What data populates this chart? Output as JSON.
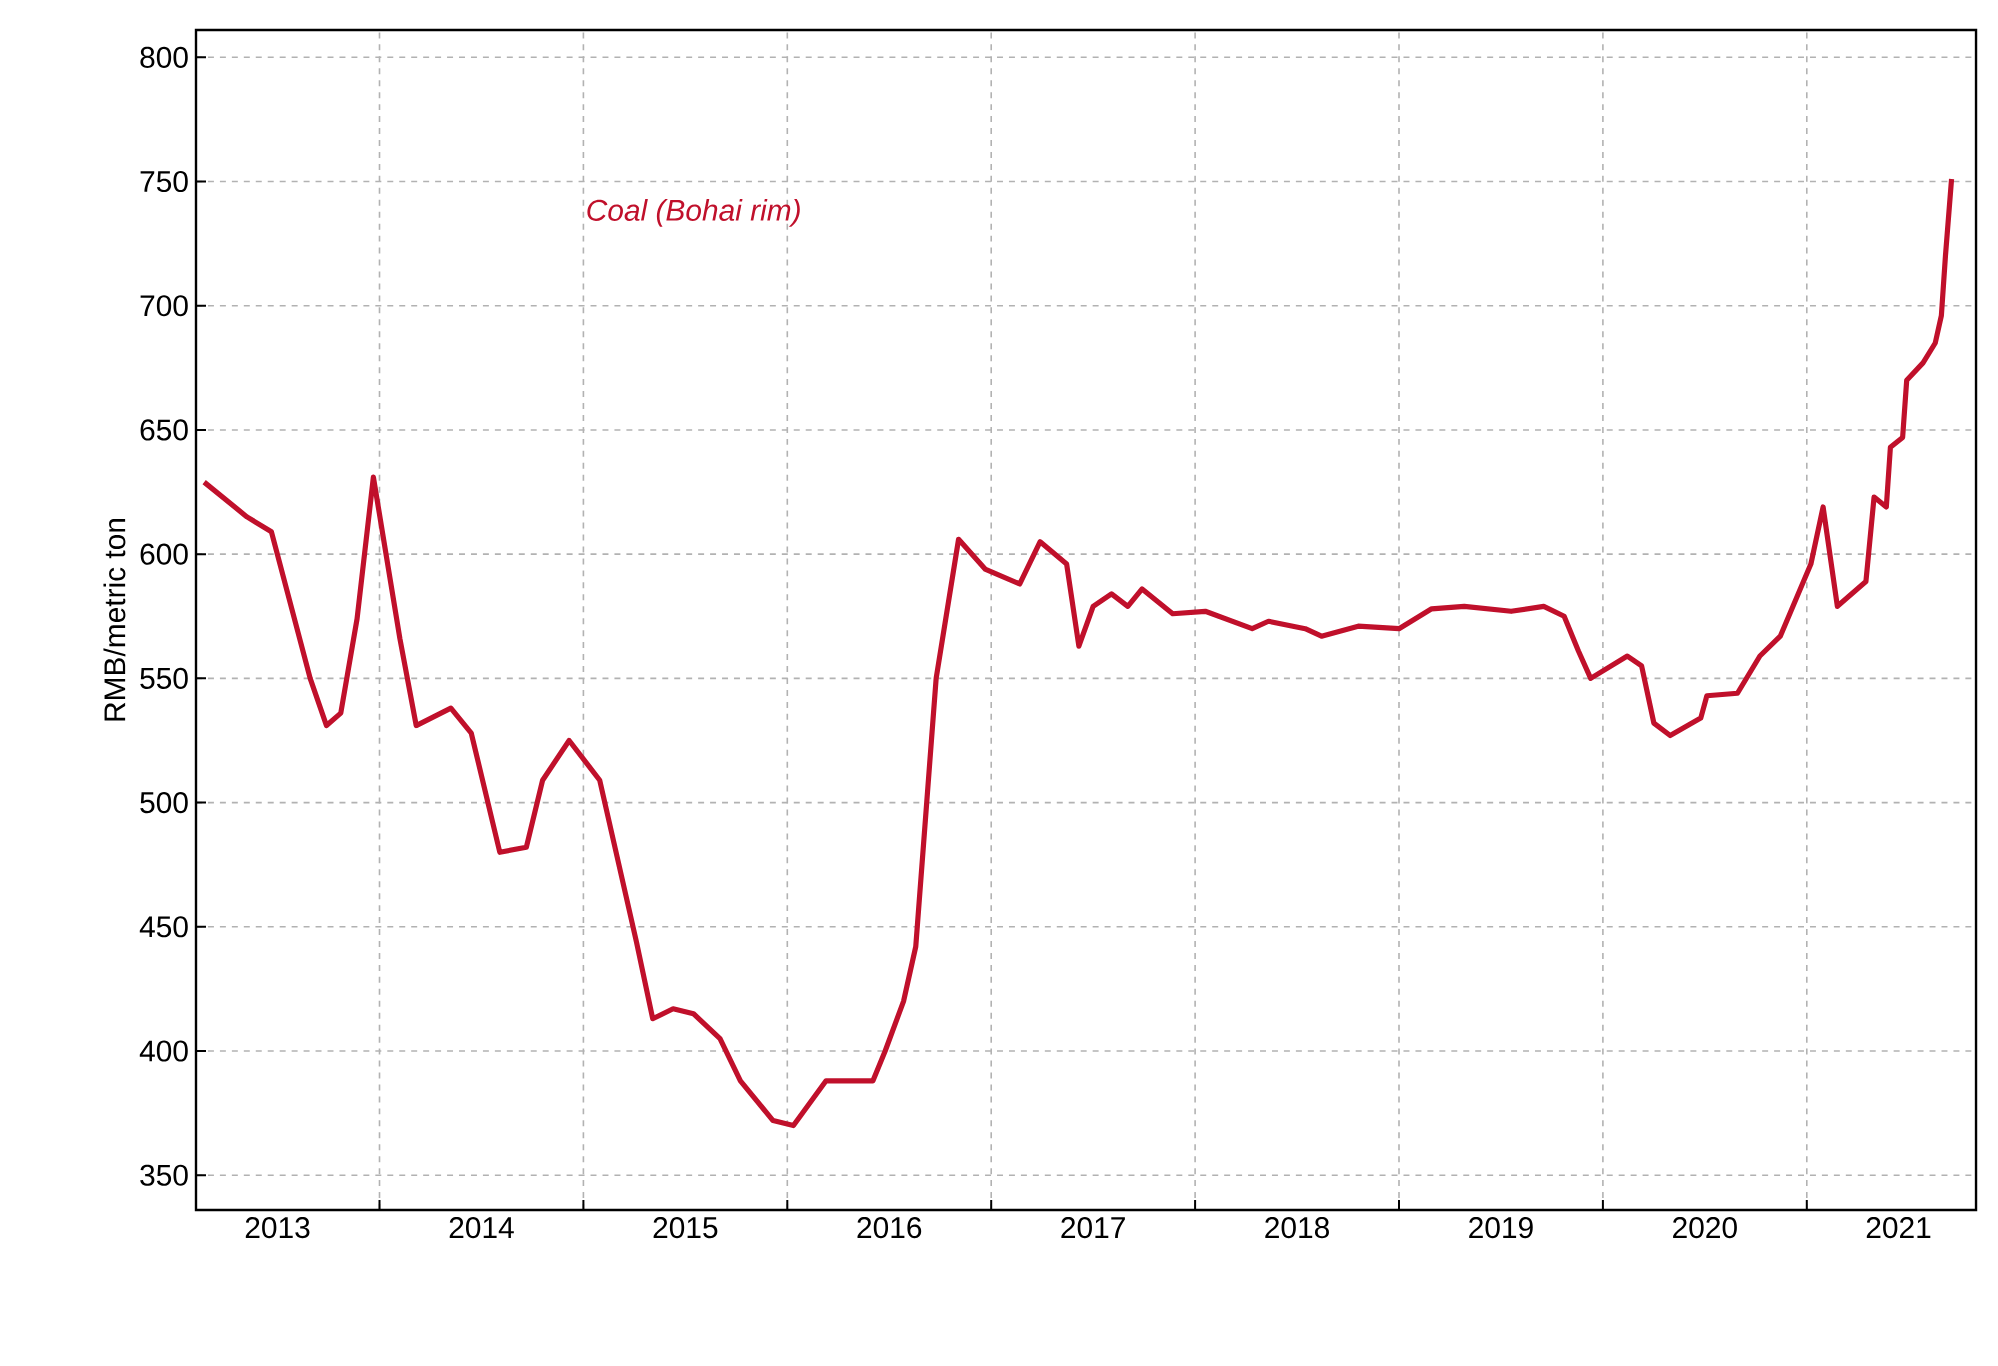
{
  "chart_data": {
    "type": "line",
    "ylabel": "RMB/metric ton",
    "xlim": [
      2013.1,
      2021.83
    ],
    "ylim": [
      336,
      811
    ],
    "xticks": [
      {
        "value": 2014,
        "label": null
      },
      {
        "value": 2015,
        "label": null
      },
      {
        "value": 2016,
        "label": null
      },
      {
        "value": 2017,
        "label": null
      },
      {
        "value": 2018,
        "label": null
      },
      {
        "value": 2019,
        "label": null
      },
      {
        "value": 2020,
        "label": null
      },
      {
        "value": 2021,
        "label": null
      },
      {
        "value": 2013.5,
        "label": "2013"
      },
      {
        "value": 2014.5,
        "label": "2014"
      },
      {
        "value": 2015.5,
        "label": "2015"
      },
      {
        "value": 2016.5,
        "label": "2016"
      },
      {
        "value": 2017.5,
        "label": "2017"
      },
      {
        "value": 2018.5,
        "label": "2018"
      },
      {
        "value": 2019.5,
        "label": "2019"
      },
      {
        "value": 2020.5,
        "label": "2020"
      },
      {
        "value": 2021.45,
        "label": "2021"
      }
    ],
    "yticks": [
      350,
      400,
      450,
      500,
      550,
      600,
      650,
      700,
      750,
      800
    ],
    "grid": true,
    "legend": false,
    "line_style": "solid",
    "marker": "none",
    "series": [
      {
        "name": "Coal (Bohai rim)",
        "color": "#c0102b",
        "x": [
          2013.14,
          2013.35,
          2013.47,
          2013.66,
          2013.74,
          2013.81,
          2013.89,
          2013.97,
          2014.1,
          2014.18,
          2014.35,
          2014.45,
          2014.59,
          2014.72,
          2014.8,
          2014.93,
          2015.08,
          2015.26,
          2015.34,
          2015.44,
          2015.54,
          2015.67,
          2015.77,
          2015.93,
          2016.03,
          2016.19,
          2016.42,
          2016.48,
          2016.57,
          2016.63,
          2016.73,
          2016.84,
          2016.97,
          2017.14,
          2017.24,
          2017.37,
          2017.43,
          2017.5,
          2017.59,
          2017.67,
          2017.74,
          2017.89,
          2018.05,
          2018.28,
          2018.36,
          2018.54,
          2018.62,
          2018.8,
          2019.0,
          2019.16,
          2019.32,
          2019.55,
          2019.71,
          2019.81,
          2019.88,
          2019.94,
          2020.12,
          2020.19,
          2020.25,
          2020.33,
          2020.48,
          2020.51,
          2020.66,
          2020.77,
          2020.87,
          2021.02,
          2021.08,
          2021.15,
          2021.29,
          2021.33,
          2021.39,
          2021.41,
          2021.47,
          2021.49,
          2021.57,
          2021.63,
          2021.66,
          2021.68,
          2021.71
        ],
        "values": [
          629,
          615,
          609,
          550,
          531,
          536,
          574,
          631,
          566,
          531,
          538,
          528,
          480,
          482,
          509,
          525,
          509,
          444,
          413,
          417,
          415,
          405,
          388,
          372,
          370,
          388,
          388,
          400,
          420,
          442,
          550,
          606,
          594,
          588,
          605,
          596,
          563,
          579,
          584,
          579,
          586,
          576,
          577,
          570,
          573,
          570,
          567,
          571,
          570,
          578,
          579,
          577,
          579,
          575,
          561,
          550,
          559,
          555,
          532,
          527,
          534,
          543,
          544,
          559,
          567,
          596,
          619,
          579,
          589,
          623,
          619,
          643,
          647,
          670,
          677,
          685,
          696,
          720,
          751
        ]
      }
    ]
  }
}
